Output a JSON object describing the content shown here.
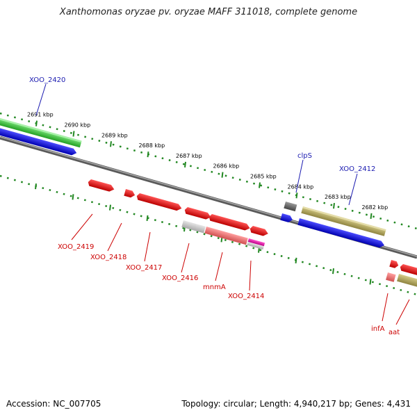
{
  "title": "Xanthomonas oryzae pv. oryzae MAFF 311018, complete genome",
  "footer": {
    "accession": "Accession: NC_007705",
    "summary": "Topology: circular; Length: 4,940,217 bp; Genes: 4,431"
  },
  "colors": {
    "forward_gene": "#3fcf3f",
    "reverse_gene": "#1010ee",
    "red_gene": "#ee1111",
    "olive_gene": "#b3a860",
    "grey_gene": "#cccccc",
    "pink_gene": "#f07878",
    "magenta_gene": "#ee22aa",
    "dark_gene": "#777777",
    "backbone": "#808080",
    "ticks": "#228822",
    "upper_label": "#1a1ab0",
    "lower_label": "#cc0000"
  },
  "ticks": [
    "2691 kbp",
    "2690 kbp",
    "2689 kbp",
    "2688 kbp",
    "2687 kbp",
    "2686 kbp",
    "2685 kbp",
    "2684 kbp",
    "2683 kbp",
    "2682 kbp"
  ],
  "upper_labels": [
    "XOO_2420",
    "clpS",
    "XOO_2412"
  ],
  "lower_labels": [
    "XOO_2419",
    "XOO_2418",
    "XOO_2417",
    "XOO_2416",
    "mnmA",
    "XOO_2414",
    "infA",
    "aat"
  ]
}
